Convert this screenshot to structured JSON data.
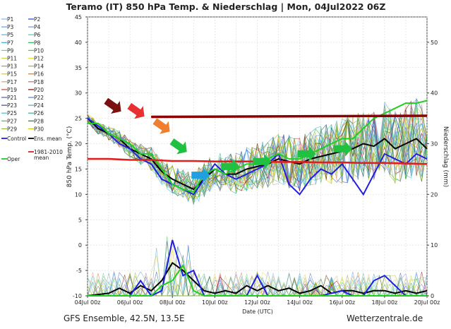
{
  "title": "Teramo  (IT)  850 hPa Temp. & Niederschlag | Mon, 04Jul2022 06Z",
  "footer_left": "GFS Ensemble, 42.5N, 13.5E",
  "footer_right": "Wetterzentrale.de",
  "chart_data": {
    "type": "line",
    "title": "Teramo  (IT)  850 hPa Temp. & Niederschlag | Mon, 04Jul2022 06Z",
    "xlabel": "Date (UTC)",
    "ylabel": "850 hPa Temp. (°C)",
    "y2label": "Niederschlag (mm)",
    "ylim": [
      -10,
      45
    ],
    "y2lim": [
      0,
      55
    ],
    "yticks": [
      -10,
      -5,
      0,
      5,
      10,
      15,
      20,
      25,
      30,
      35,
      40,
      45
    ],
    "y2ticks": [
      0,
      10,
      20,
      30,
      40,
      50
    ],
    "x_range_days": [
      0,
      16
    ],
    "xticks": [
      {
        "day": 0,
        "label": "04Jul 00z"
      },
      {
        "day": 2,
        "label": "06Jul 00z"
      },
      {
        "day": 4,
        "label": "08Jul 00z"
      },
      {
        "day": 6,
        "label": "10Jul 00z"
      },
      {
        "day": 8,
        "label": "12Jul 00z"
      },
      {
        "day": 10,
        "label": "14Jul 00z"
      },
      {
        "day": 12,
        "label": "16Jul 00z"
      },
      {
        "day": 14,
        "label": "18Jul 00z"
      },
      {
        "day": 16,
        "label": "20Jul 00z"
      }
    ],
    "grid": true,
    "legend_position": "left",
    "legend": [
      {
        "label": "P1",
        "color": "#7fb2ff"
      },
      {
        "label": "P2",
        "color": "#1f3fd0"
      },
      {
        "label": "P3",
        "color": "#5aa0e6"
      },
      {
        "label": "P4",
        "color": "#6a8fd8"
      },
      {
        "label": "P5",
        "color": "#40c0e0"
      },
      {
        "label": "P6",
        "color": "#40d0b0"
      },
      {
        "label": "P7",
        "color": "#30b0d0"
      },
      {
        "label": "P8",
        "color": "#20c040"
      },
      {
        "label": "P9",
        "color": "#60e060"
      },
      {
        "label": "P10",
        "color": "#40d040"
      },
      {
        "label": "P11",
        "color": "#d0d040"
      },
      {
        "label": "P12",
        "color": "#e0e030"
      },
      {
        "label": "P13",
        "color": "#b0a030"
      },
      {
        "label": "P14",
        "color": "#a0b040"
      },
      {
        "label": "P15",
        "color": "#e0c060"
      },
      {
        "label": "P16",
        "color": "#c08040"
      },
      {
        "label": "P17",
        "color": "#d0a080"
      },
      {
        "label": "P18",
        "color": "#c07070"
      },
      {
        "label": "P19",
        "color": "#c04040"
      },
      {
        "label": "P20",
        "color": "#8b0000"
      },
      {
        "label": "P21",
        "color": "#4060c0"
      },
      {
        "label": "P22",
        "color": "#5080d0"
      },
      {
        "label": "P23",
        "color": "#305090"
      },
      {
        "label": "P24",
        "color": "#60a0c0"
      },
      {
        "label": "P25",
        "color": "#50c0c0"
      },
      {
        "label": "P26",
        "color": "#40b090"
      },
      {
        "label": "P27",
        "color": "#60b060"
      },
      {
        "label": "P28",
        "color": "#208020"
      },
      {
        "label": "P29",
        "color": "#90c030"
      },
      {
        "label": "P30",
        "color": "#d0d000"
      },
      {
        "label": "Control",
        "color": "#2020e0"
      },
      {
        "label": "Ens. mean",
        "color": "#000000"
      },
      {
        "label": "1981-2010 mean",
        "color": "#e02020"
      },
      {
        "label": "Oper",
        "color": "#20d020"
      }
    ],
    "series": [
      {
        "name": "Ens. mean",
        "color": "#000000",
        "x": [
          0,
          0.5,
          1,
          1.5,
          2,
          2.5,
          3,
          3.5,
          4,
          4.5,
          5,
          5.5,
          6,
          6.5,
          7,
          7.5,
          8,
          8.5,
          9,
          9.5,
          10,
          10.5,
          11,
          11.5,
          12,
          12.5,
          13,
          13.5,
          14,
          14.5,
          15,
          15.5,
          16
        ],
        "y": [
          25,
          23,
          22,
          21,
          19,
          18,
          17,
          14.5,
          13,
          12,
          11,
          13,
          15,
          14,
          14,
          15,
          15.5,
          16,
          17,
          16.5,
          16,
          17,
          17.5,
          18,
          18.5,
          19,
          20,
          19.5,
          21,
          19,
          20,
          21,
          19
        ]
      },
      {
        "name": "Control",
        "color": "#2020e0",
        "x": [
          0,
          0.5,
          1,
          1.5,
          2,
          2.5,
          3,
          3.5,
          4,
          4.5,
          5,
          5.5,
          6,
          6.5,
          7,
          7.5,
          8,
          8.5,
          9,
          9.5,
          10,
          10.5,
          11,
          11.5,
          12,
          12.5,
          13,
          13.5,
          14,
          14.5,
          15,
          15.5,
          16
        ],
        "y": [
          25,
          23.5,
          22,
          20,
          19,
          17,
          16,
          13,
          12,
          11,
          10,
          13,
          16,
          14,
          13,
          14,
          15,
          16,
          18,
          12,
          10,
          13,
          15,
          14,
          16,
          13,
          10,
          14,
          18,
          17,
          16,
          18,
          17
        ]
      },
      {
        "name": "Oper",
        "color": "#20d020",
        "x": [
          0,
          0.5,
          1,
          1.5,
          2,
          2.5,
          3,
          3.5,
          4,
          4.5,
          5,
          5.5,
          6,
          6.5,
          7,
          7.5,
          8,
          8.5,
          9,
          9.5,
          10,
          10.5,
          11,
          11.5,
          12,
          12.5,
          13,
          13.5,
          14,
          14.5,
          15,
          15.5,
          16
        ],
        "y": [
          24,
          24,
          22,
          21,
          20,
          18,
          18,
          15,
          12,
          11,
          10.5,
          14,
          15,
          14,
          15,
          16,
          16,
          17,
          18,
          17,
          17,
          18,
          19,
          20,
          21,
          21,
          23,
          25,
          26,
          27,
          28,
          28,
          28.5
        ]
      },
      {
        "name": "1981-2010 mean",
        "color": "#e02020",
        "x": [
          0,
          1,
          2,
          3,
          4,
          5,
          6,
          7,
          8,
          9,
          10,
          11,
          12,
          13,
          14,
          15,
          16
        ],
        "y": [
          17,
          17,
          16.8,
          16.8,
          16.6,
          16.6,
          16.5,
          16.5,
          16.5,
          16.4,
          16.4,
          16.3,
          16.3,
          16.2,
          16.2,
          16.1,
          16
        ]
      }
    ],
    "precipitation": {
      "axis": "y2",
      "note": "bottom panel, mm",
      "series": [
        {
          "name": "Ens. mean",
          "color": "#000000",
          "x": [
            0,
            1,
            1.5,
            2,
            2.5,
            3,
            3.5,
            4,
            4.5,
            5,
            5.5,
            6,
            6.5,
            7,
            7.5,
            8,
            8.5,
            9,
            9.5,
            10,
            10.5,
            11,
            11.5,
            12,
            12.5,
            13,
            13.5,
            14,
            14.5,
            15,
            15.5,
            16
          ],
          "y": [
            0,
            0.5,
            1.5,
            0.5,
            2,
            1,
            3,
            6.5,
            5,
            3,
            1,
            0.5,
            1,
            0.5,
            2,
            1,
            2,
            1,
            1.5,
            0.5,
            1,
            2,
            0.5,
            1,
            1,
            0.5,
            1,
            1,
            0.5,
            1,
            0.5,
            1
          ]
        },
        {
          "name": "Control",
          "color": "#2020e0",
          "x": [
            0,
            1,
            2,
            2.5,
            3,
            3.5,
            4,
            4.5,
            5,
            5.5,
            6,
            7,
            7.5,
            8,
            8.5,
            9,
            10,
            11,
            12,
            12.5,
            13,
            13.5,
            14,
            15,
            16
          ],
          "y": [
            0,
            0,
            0,
            3,
            0,
            1,
            11,
            4,
            5,
            0,
            0,
            0,
            0,
            4,
            0,
            0,
            0,
            0,
            1,
            0,
            0,
            3,
            4,
            0,
            0
          ]
        },
        {
          "name": "Oper",
          "color": "#20d020",
          "x": [
            0,
            1,
            2,
            3,
            3.5,
            4,
            4.5,
            5,
            5.5,
            6,
            7,
            8,
            9,
            10,
            11,
            12,
            13,
            14,
            15,
            16
          ],
          "y": [
            0,
            0,
            0,
            0,
            2,
            3,
            6,
            1,
            0,
            0,
            0,
            0,
            0,
            0,
            0,
            0,
            0,
            0,
            0,
            0
          ]
        }
      ]
    },
    "annotations": [
      {
        "type": "line",
        "color": "#8b0000",
        "x": [
          3,
          16
        ],
        "y": [
          25.3,
          25.5
        ]
      },
      {
        "type": "arrow",
        "color": "#7a1010",
        "x": 1.2,
        "y": 27.5,
        "direction": "down-right"
      },
      {
        "type": "arrow",
        "color": "#e83030",
        "x": 2.3,
        "y": 26.5,
        "direction": "down-right"
      },
      {
        "type": "arrow",
        "color": "#f08030",
        "x": 3.5,
        "y": 23.5,
        "direction": "down-right"
      },
      {
        "type": "arrow",
        "color": "#20c040",
        "x": 4.3,
        "y": 19.5,
        "direction": "down-right"
      },
      {
        "type": "arrow",
        "color": "#20a0e0",
        "x": 5.3,
        "y": 13.8,
        "direction": "right"
      },
      {
        "type": "arrow",
        "color": "#20c040",
        "x": 6.7,
        "y": 15.5,
        "direction": "right"
      },
      {
        "type": "arrow",
        "color": "#20c040",
        "x": 8.2,
        "y": 16.5,
        "direction": "right"
      },
      {
        "type": "arrow",
        "color": "#20c040",
        "x": 10.3,
        "y": 18,
        "direction": "right"
      },
      {
        "type": "arrow",
        "color": "#20c040",
        "x": 12.0,
        "y": 19,
        "direction": "right"
      }
    ]
  }
}
